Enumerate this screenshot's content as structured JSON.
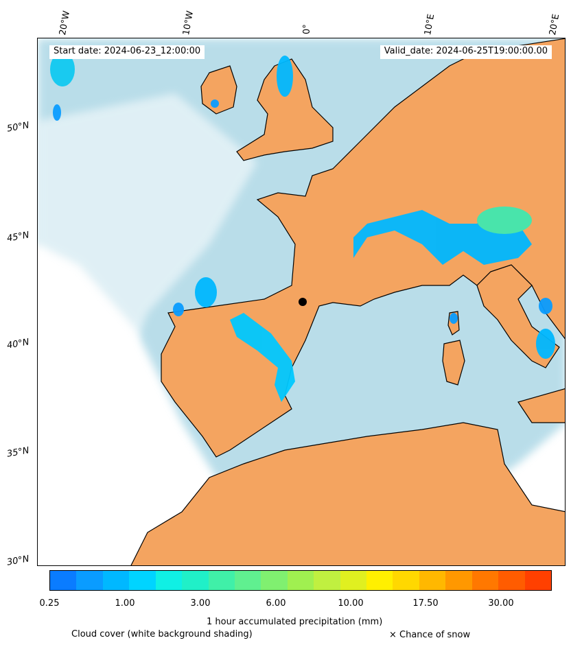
{
  "map": {
    "start_date": "Start date: 2024-06-23_12:00:00",
    "valid_date": "Valid_date: 2024-06-25T19:00:00.00",
    "lon_labels": [
      "20°W",
      "10°W",
      "0°",
      "10°E",
      "20°E"
    ],
    "lat_labels": [
      "50°N",
      "45°N",
      "40°N",
      "35°N",
      "30°N"
    ],
    "colors": {
      "land_warm": "#f4a460",
      "sea_cloud": "#add8e6",
      "clear": "#ffffff",
      "coast": "#000000"
    }
  },
  "colorbar": {
    "title": "1 hour accumulated precipitation (mm)",
    "tick_labels": [
      "0.25",
      "1.00",
      "3.00",
      "6.00",
      "10.00",
      "17.50",
      "30.00"
    ],
    "colors": [
      "#0a7cff",
      "#0a9cff",
      "#00b8ff",
      "#00d4ff",
      "#10f0e4",
      "#20f0c8",
      "#40f0a8",
      "#60f090",
      "#80f070",
      "#a0f050",
      "#c0f040",
      "#e0f020",
      "#fff000",
      "#ffd800",
      "#ffb800",
      "#ff9800",
      "#ff7800",
      "#ff5c00",
      "#ff4000"
    ]
  },
  "footer": {
    "cloud_cover": "Cloud cover (white background shading)",
    "snow": "× Chance of snow"
  }
}
